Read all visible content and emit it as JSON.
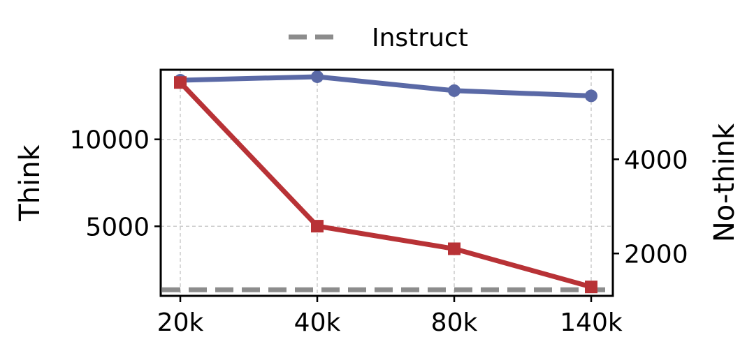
{
  "chart_data": {
    "type": "line",
    "categories": [
      "20k",
      "40k",
      "80k",
      "140k"
    ],
    "left_axis": {
      "label": "Think",
      "ticks": [
        5000,
        10000
      ],
      "ylim": [
        1000,
        14000
      ]
    },
    "right_axis": {
      "label": "No-think",
      "ticks": [
        2000,
        4000
      ],
      "ylim": [
        1100,
        5900
      ]
    },
    "series": [
      {
        "axis": "left",
        "values": [
          13400,
          13600,
          12800,
          12500
        ],
        "color": "#5a69a6",
        "marker": "circle"
      },
      {
        "axis": "right",
        "values": [
          5630,
          2580,
          2100,
          1290
        ],
        "color": "#b83236",
        "marker": "square"
      }
    ],
    "reference_lines": [
      {
        "name": "Instruct",
        "axis": "left",
        "value": 1350,
        "color": "#8c8c8c",
        "style": "dashed"
      }
    ],
    "grid": true,
    "legend": {
      "placement": "top-center",
      "entries": [
        "Instruct"
      ]
    }
  }
}
